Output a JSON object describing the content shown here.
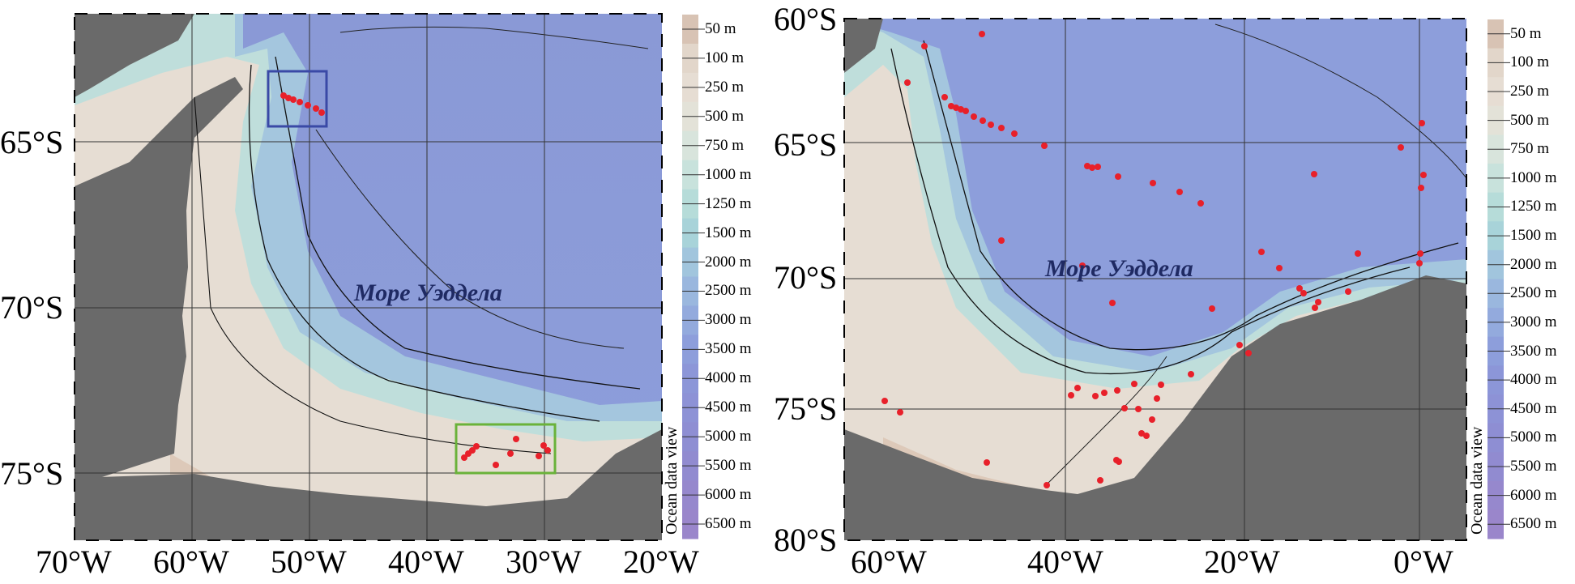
{
  "left_map": {
    "lat_labels": [
      "65°S",
      "70°S",
      "75°S"
    ],
    "lon_labels": [
      "70°W",
      "60°W",
      "50°W",
      "40°W",
      "30°W",
      "20°W"
    ],
    "sea_label": "Море Уэддела"
  },
  "right_map": {
    "lat_labels": [
      "60°S",
      "65°S",
      "70°S",
      "75°S",
      "80°S"
    ],
    "lon_labels": [
      "60°W",
      "40°W",
      "20°W",
      "0°W"
    ],
    "sea_label": "Море Уэддела"
  },
  "colorbar": {
    "levels": [
      "50 m",
      "100 m",
      "250 m",
      "500 m",
      "750 m",
      "1000 m",
      "1250 m",
      "1500 m",
      "2000 m",
      "2500 m",
      "3000 m",
      "3500 m",
      "4000 m",
      "4500 m",
      "5000 m",
      "5500 m",
      "6000 m",
      "6500 m"
    ],
    "colors": [
      "#d8c3b4",
      "#e2d6ca",
      "#e6ddd3",
      "#e3e2d8",
      "#d8e4dc",
      "#c8e2dc",
      "#b6dcd9",
      "#a8d3d9",
      "#a1c5dd",
      "#9ab7de",
      "#93aadd",
      "#8d9edb",
      "#8c96d8",
      "#8d92d6",
      "#8e8ed3",
      "#918bd0",
      "#9688cd",
      "#9a86cb"
    ],
    "title": "Ocean data view"
  },
  "legend_colors": {
    "land": "#6a6a6a",
    "shelf": "#e6ddd3",
    "deep": "#8d9edb",
    "stations": "#e8202a",
    "box_north": "#3a49a6",
    "box_south": "#6ab23a"
  }
}
